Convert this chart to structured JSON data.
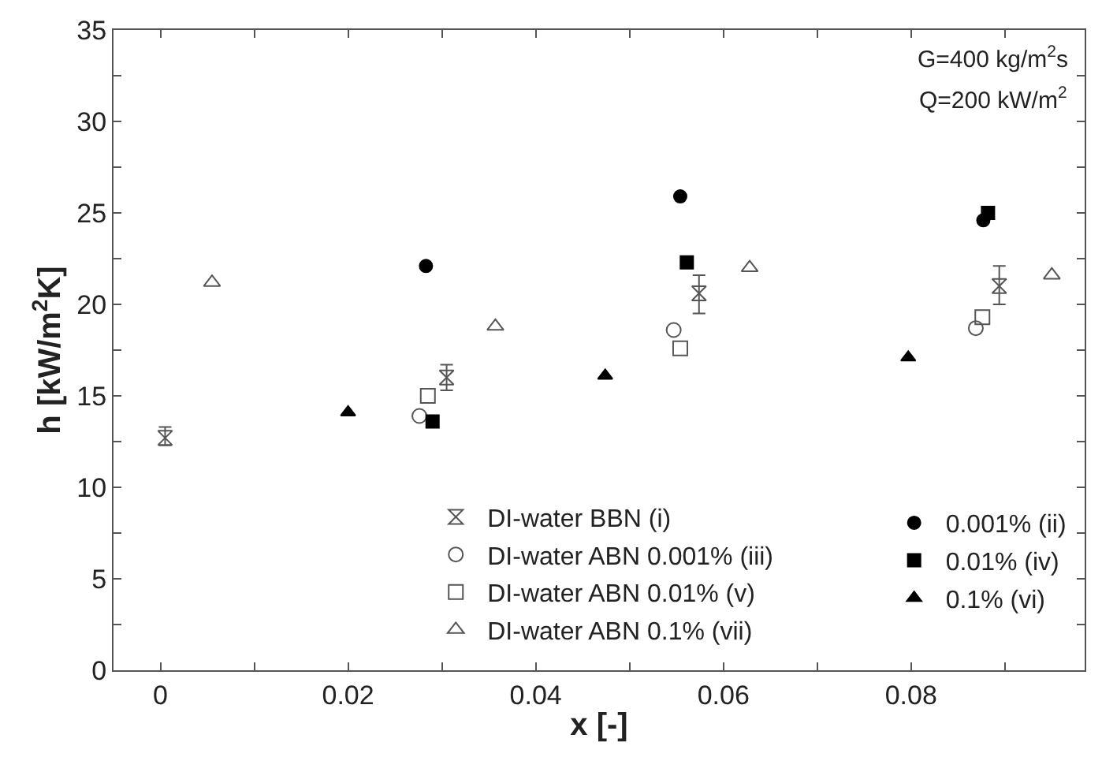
{
  "chart_data": {
    "type": "scatter",
    "xlabel": "x [-]",
    "ylabel": "h [kW/m$^{2}$K]",
    "annotations": [
      "G=400 kg/m$^{2}$s",
      "Q=200 kW/m$^{2}$"
    ],
    "xlim": [
      -0.005,
      0.0985
    ],
    "ylim": [
      0,
      35
    ],
    "xticks": [
      0,
      {
        "value": 0.01,
        "label": null
      },
      0.02,
      {
        "value": 0.03,
        "label": null
      },
      0.04,
      {
        "value": 0.05,
        "label": null
      },
      0.06,
      {
        "value": 0.07,
        "label": null
      },
      0.08,
      {
        "value": 0.09,
        "label": null
      }
    ],
    "yticks": [
      0,
      {
        "value": 2.5,
        "label": null
      },
      5,
      {
        "value": 7.5,
        "label": null
      },
      10,
      {
        "value": 12.5,
        "label": null
      },
      15,
      {
        "value": 17.5,
        "label": null
      },
      20,
      {
        "value": 22.5,
        "label": null
      },
      25,
      {
        "value": 27.5,
        "label": null
      },
      30,
      {
        "value": 32.5,
        "label": null
      },
      35
    ],
    "legend": "bottom",
    "series": [
      {
        "name": "DI-water BBN (i)",
        "color": "#555555",
        "x": [
          0.0005,
          0.0305,
          0.0574,
          0.0894
        ],
        "values": [
          12.7,
          16.0,
          20.6,
          21.0
        ],
        "errors": [
          [
            12.3,
            13.3
          ],
          [
            15.3,
            16.7
          ],
          [
            19.5,
            21.6
          ],
          [
            20.0,
            22.1
          ]
        ]
      },
      {
        "name": "DI-water ABN 0.001% (iii)",
        "color": "#555555",
        "marker": "circle-open",
        "x": [
          0.0276,
          0.0547,
          0.0869
        ],
        "values": [
          13.9,
          18.6,
          18.7
        ]
      },
      {
        "name": "DI-water ABN 0.01% (v)",
        "color": "#555555",
        "marker": "square-open",
        "x": [
          0.0285,
          0.0554,
          0.0876
        ],
        "values": [
          15.0,
          17.6,
          19.3
        ]
      },
      {
        "name": "DI-water ABN 0.1% (vii)",
        "color": "#555555",
        "marker": "triangle-open",
        "x": [
          0.0055,
          0.0357,
          0.0628,
          0.095
        ],
        "values": [
          21.2,
          18.8,
          22.0,
          21.6
        ]
      },
      {
        "name": "0.001% (ii)",
        "color": "#000000",
        "marker": "circle",
        "x": [
          0.0283,
          0.0554,
          0.0877
        ],
        "values": [
          22.1,
          25.9,
          24.6
        ]
      },
      {
        "name": "0.01% (iv)",
        "color": "#000000",
        "marker": "square",
        "x": [
          0.029,
          0.0561,
          0.0882
        ],
        "values": [
          13.6,
          22.3,
          25.0
        ]
      },
      {
        "name": "0.1% (vi)",
        "color": "#000000",
        "marker": "triangle",
        "x": [
          0.02,
          0.0474,
          0.0797
        ],
        "values": [
          14.1,
          16.1,
          17.1
        ]
      }
    ]
  }
}
